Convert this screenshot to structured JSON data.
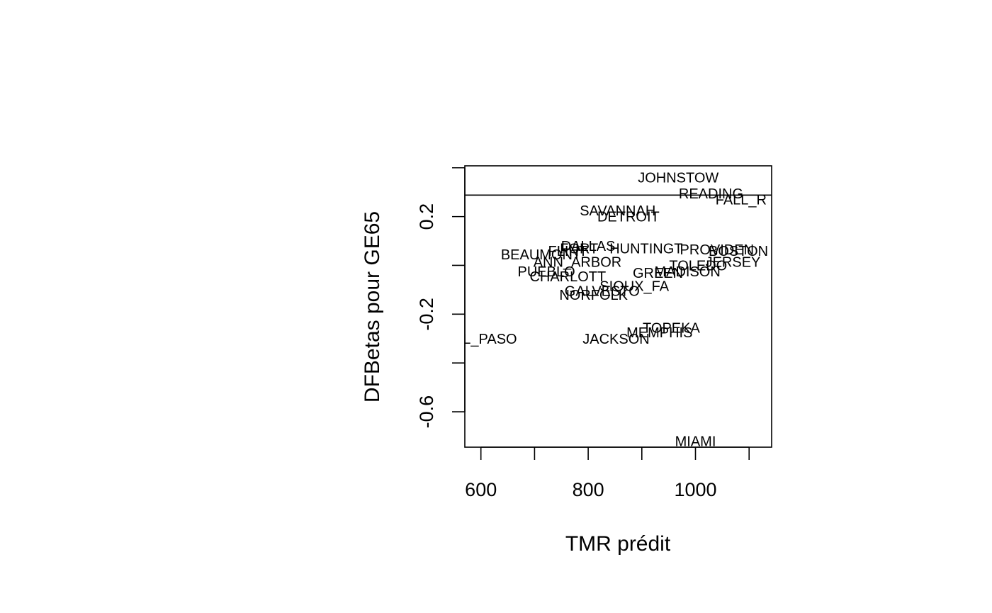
{
  "chart_data": {
    "type": "scatter",
    "title": "",
    "xlabel": "TMR prédit",
    "ylabel": "DFBetas pour GE65",
    "xlim": [
      570,
      1142
    ],
    "ylim": [
      -0.745,
      0.408
    ],
    "x_ticks": [
      600,
      700,
      800,
      900,
      1000,
      1100
    ],
    "x_tick_labels": [
      "600",
      "",
      "800",
      "",
      "1000",
      ""
    ],
    "y_ticks": [
      -0.6,
      -0.4,
      -0.2,
      0.0,
      0.2,
      0.4
    ],
    "y_tick_labels": [
      "-0.6",
      "",
      "-0.2",
      "",
      "0.2",
      ""
    ],
    "reference_lines": [
      0.288
    ],
    "grid": false,
    "points": [
      {
        "label": "JOHNSTOW",
        "x": 968,
        "y": 0.36
      },
      {
        "label": "READING",
        "x": 1029,
        "y": 0.295
      },
      {
        "label": "FALL_R",
        "x": 1085,
        "y": 0.27
      },
      {
        "label": "SAVANNAH",
        "x": 855,
        "y": 0.225
      },
      {
        "label": "DETROIT",
        "x": 875,
        "y": 0.2
      },
      {
        "label": "DALLAS",
        "x": 800,
        "y": 0.08
      },
      {
        "label": "FORT",
        "x": 783,
        "y": 0.07
      },
      {
        "label": "HUNTINGT",
        "x": 908,
        "y": 0.07
      },
      {
        "label": "PROVIDEN",
        "x": 1040,
        "y": 0.065
      },
      {
        "label": "BOSTON",
        "x": 1080,
        "y": 0.06
      },
      {
        "label": "FLINT",
        "x": 762,
        "y": 0.06
      },
      {
        "label": "BEAUMONT",
        "x": 712,
        "y": 0.045
      },
      {
        "label": "JERSEY",
        "x": 1070,
        "y": 0.015
      },
      {
        "label": "TOLEDO",
        "x": 1005,
        "y": 0.0
      },
      {
        "label": "ANN_ARBOR",
        "x": 780,
        "y": 0.015
      },
      {
        "label": "PUEBLO",
        "x": 722,
        "y": -0.025
      },
      {
        "label": "CHARLOTT",
        "x": 762,
        "y": -0.045
      },
      {
        "label": "GREEN",
        "x": 930,
        "y": -0.03
      },
      {
        "label": "MADISON",
        "x": 985,
        "y": -0.025
      },
      {
        "label": "SIOUX_FA",
        "x": 886,
        "y": -0.085
      },
      {
        "label": "GALVESTO",
        "x": 826,
        "y": -0.105
      },
      {
        "label": "NORFOLK",
        "x": 810,
        "y": -0.12
      },
      {
        "label": "TOPEKA",
        "x": 955,
        "y": -0.255
      },
      {
        "label": "MEMPHIS",
        "x": 933,
        "y": -0.275
      },
      {
        "label": "JACKSON",
        "x": 852,
        "y": -0.3
      },
      {
        "label": "EL_PASO",
        "x": 608,
        "y": -0.3
      },
      {
        "label": "MIAMI",
        "x": 1000,
        "y": -0.72
      }
    ]
  }
}
